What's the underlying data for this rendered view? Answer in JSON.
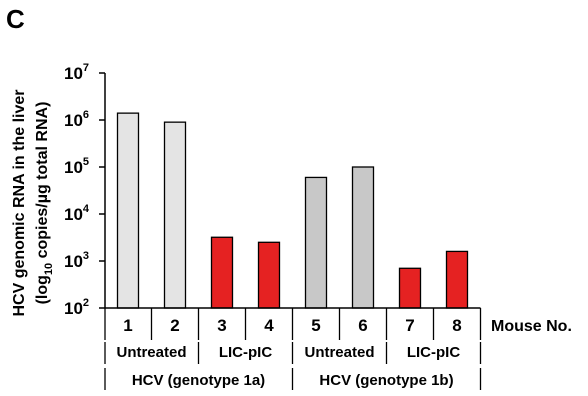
{
  "panel_label": "C",
  "chart_data": {
    "type": "bar",
    "ylabel_line1": "HCV genomic RNA in the liver",
    "ylabel_line2_pre": "(log",
    "ylabel_line2_sub": "10",
    "ylabel_line2_post": " copies/µg total RNA)",
    "yscale": "log",
    "ylim": [
      100,
      10000000
    ],
    "yticks": [
      {
        "base": "10",
        "exp": "2",
        "value": 100
      },
      {
        "base": "10",
        "exp": "3",
        "value": 1000
      },
      {
        "base": "10",
        "exp": "4",
        "value": 10000
      },
      {
        "base": "10",
        "exp": "5",
        "value": 100000
      },
      {
        "base": "10",
        "exp": "6",
        "value": 1000000
      },
      {
        "base": "10",
        "exp": "7",
        "value": 10000000
      }
    ],
    "xlabel": "Mouse No.",
    "categories": [
      "1",
      "2",
      "3",
      "4",
      "5",
      "6",
      "7",
      "8"
    ],
    "values": [
      1400000,
      900000,
      3200,
      2500,
      60000,
      100000,
      700,
      1600
    ],
    "bar_colors": [
      "#e4e4e4",
      "#e4e4e4",
      "#e52222",
      "#e52222",
      "#c8c8c8",
      "#c8c8c8",
      "#e52222",
      "#e52222"
    ],
    "treatment_groups": [
      "Untreated",
      "LIC-pIC",
      "Untreated",
      "LIC-pIC"
    ],
    "genotype_groups": [
      "HCV (genotype 1a)",
      "HCV (genotype 1b)"
    ],
    "grid": false,
    "legend": "none"
  }
}
